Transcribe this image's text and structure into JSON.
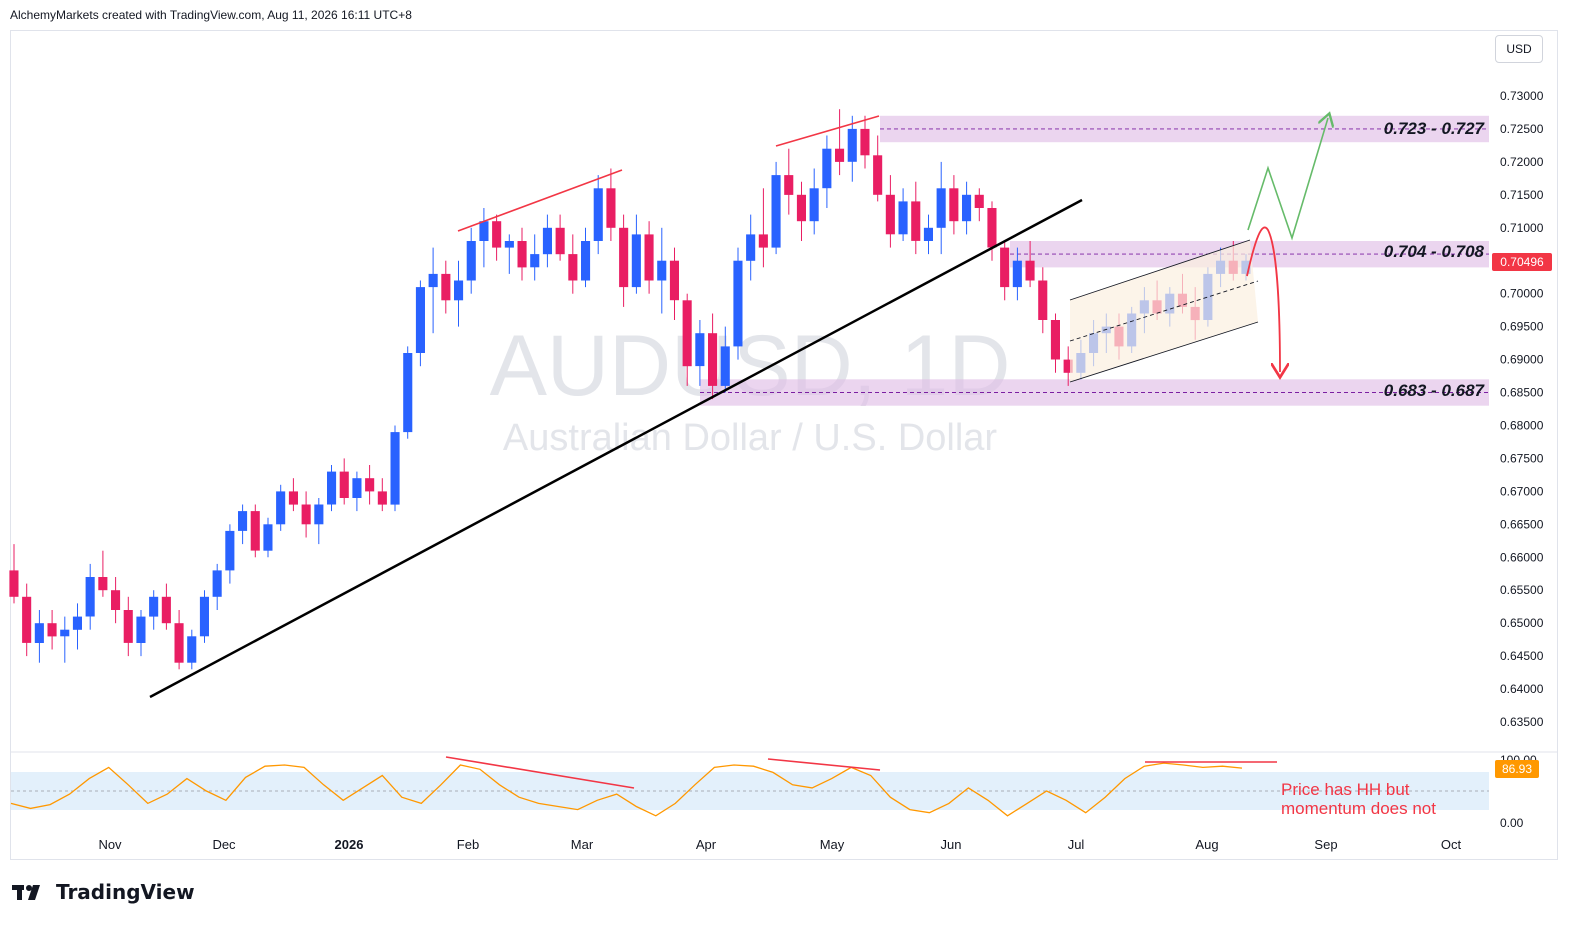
{
  "header": {
    "attribution": "AlchemyMarkets created with TradingView.com, Aug 11, 2026 16:11 UTC+8",
    "currency_button": "USD",
    "brand": "TradingView"
  },
  "watermark": {
    "symbol": "AUDUSD, 1D",
    "description": "Australian Dollar / U.S. Dollar"
  },
  "colors": {
    "bull": "#2962ff",
    "bear": "#e91e63",
    "zone": "#e1bee7",
    "trendline": "#000000",
    "divergence": "#f23645",
    "green_path": "#66bb6a",
    "red_path": "#f23645",
    "oscillator": "#ff9800",
    "price_label": "#f23645"
  },
  "chart_data": [
    {
      "type": "candlestick",
      "title": "AUDUSD, 1D",
      "subtitle": "Australian Dollar / U.S. Dollar",
      "ylim": [
        0.6315,
        0.7365
      ],
      "y_ticks": [
        "0.73000",
        "0.72500",
        "0.72000",
        "0.71500",
        "0.71000",
        "0.70000",
        "0.69500",
        "0.69000",
        "0.68500",
        "0.68000",
        "0.67500",
        "0.67000",
        "0.66500",
        "0.66000",
        "0.65500",
        "0.65000",
        "0.64500",
        "0.64000",
        "0.63500"
      ],
      "x_ticks": [
        "Nov",
        "Dec",
        "2026",
        "Feb",
        "Mar",
        "Apr",
        "May",
        "Jun",
        "Jul",
        "Aug",
        "Sep",
        "Oct"
      ],
      "last_price": "0.70496",
      "candles": [
        [
          0.658,
          0.662,
          0.653,
          0.654
        ],
        [
          0.654,
          0.656,
          0.645,
          0.647
        ],
        [
          0.647,
          0.652,
          0.644,
          0.65
        ],
        [
          0.65,
          0.652,
          0.646,
          0.648
        ],
        [
          0.648,
          0.651,
          0.644,
          0.649
        ],
        [
          0.649,
          0.653,
          0.646,
          0.651
        ],
        [
          0.651,
          0.659,
          0.649,
          0.657
        ],
        [
          0.657,
          0.661,
          0.654,
          0.655
        ],
        [
          0.655,
          0.657,
          0.65,
          0.652
        ],
        [
          0.652,
          0.654,
          0.645,
          0.647
        ],
        [
          0.647,
          0.652,
          0.645,
          0.651
        ],
        [
          0.651,
          0.655,
          0.649,
          0.654
        ],
        [
          0.654,
          0.656,
          0.649,
          0.65
        ],
        [
          0.65,
          0.652,
          0.643,
          0.644
        ],
        [
          0.644,
          0.649,
          0.643,
          0.648
        ],
        [
          0.648,
          0.655,
          0.647,
          0.654
        ],
        [
          0.654,
          0.659,
          0.652,
          0.658
        ],
        [
          0.658,
          0.665,
          0.656,
          0.664
        ],
        [
          0.664,
          0.668,
          0.662,
          0.667
        ],
        [
          0.667,
          0.668,
          0.66,
          0.661
        ],
        [
          0.661,
          0.666,
          0.66,
          0.665
        ],
        [
          0.665,
          0.671,
          0.664,
          0.67
        ],
        [
          0.67,
          0.672,
          0.667,
          0.668
        ],
        [
          0.668,
          0.67,
          0.663,
          0.665
        ],
        [
          0.665,
          0.669,
          0.662,
          0.668
        ],
        [
          0.668,
          0.674,
          0.667,
          0.673
        ],
        [
          0.673,
          0.675,
          0.668,
          0.669
        ],
        [
          0.669,
          0.673,
          0.667,
          0.672
        ],
        [
          0.672,
          0.674,
          0.668,
          0.67
        ],
        [
          0.67,
          0.672,
          0.667,
          0.668
        ],
        [
          0.668,
          0.68,
          0.667,
          0.679
        ],
        [
          0.679,
          0.692,
          0.678,
          0.691
        ],
        [
          0.691,
          0.702,
          0.689,
          0.701
        ],
        [
          0.701,
          0.707,
          0.694,
          0.703
        ],
        [
          0.703,
          0.705,
          0.697,
          0.699
        ],
        [
          0.699,
          0.705,
          0.695,
          0.702
        ],
        [
          0.702,
          0.71,
          0.7,
          0.708
        ],
        [
          0.708,
          0.713,
          0.704,
          0.711
        ],
        [
          0.711,
          0.712,
          0.705,
          0.707
        ],
        [
          0.707,
          0.709,
          0.703,
          0.708
        ],
        [
          0.708,
          0.71,
          0.702,
          0.704
        ],
        [
          0.704,
          0.709,
          0.702,
          0.706
        ],
        [
          0.706,
          0.712,
          0.704,
          0.71
        ],
        [
          0.71,
          0.712,
          0.705,
          0.706
        ],
        [
          0.706,
          0.709,
          0.7,
          0.702
        ],
        [
          0.702,
          0.71,
          0.701,
          0.708
        ],
        [
          0.708,
          0.718,
          0.706,
          0.716
        ],
        [
          0.716,
          0.719,
          0.708,
          0.71
        ],
        [
          0.71,
          0.712,
          0.698,
          0.701
        ],
        [
          0.701,
          0.712,
          0.7,
          0.709
        ],
        [
          0.709,
          0.711,
          0.7,
          0.702
        ],
        [
          0.702,
          0.71,
          0.697,
          0.705
        ],
        [
          0.705,
          0.707,
          0.696,
          0.699
        ],
        [
          0.699,
          0.7,
          0.686,
          0.689
        ],
        [
          0.689,
          0.696,
          0.686,
          0.694
        ],
        [
          0.694,
          0.697,
          0.684,
          0.686
        ],
        [
          0.686,
          0.695,
          0.685,
          0.692
        ],
        [
          0.692,
          0.707,
          0.69,
          0.705
        ],
        [
          0.705,
          0.712,
          0.702,
          0.709
        ],
        [
          0.709,
          0.716,
          0.704,
          0.707
        ],
        [
          0.707,
          0.72,
          0.706,
          0.718
        ],
        [
          0.718,
          0.722,
          0.712,
          0.715
        ],
        [
          0.715,
          0.717,
          0.708,
          0.711
        ],
        [
          0.711,
          0.719,
          0.709,
          0.716
        ],
        [
          0.716,
          0.724,
          0.713,
          0.722
        ],
        [
          0.722,
          0.728,
          0.718,
          0.72
        ],
        [
          0.72,
          0.727,
          0.717,
          0.725
        ],
        [
          0.725,
          0.727,
          0.719,
          0.721
        ],
        [
          0.721,
          0.724,
          0.714,
          0.715
        ],
        [
          0.715,
          0.718,
          0.707,
          0.709
        ],
        [
          0.709,
          0.716,
          0.708,
          0.714
        ],
        [
          0.714,
          0.717,
          0.706,
          0.708
        ],
        [
          0.708,
          0.712,
          0.706,
          0.71
        ],
        [
          0.71,
          0.72,
          0.706,
          0.716
        ],
        [
          0.716,
          0.718,
          0.709,
          0.711
        ],
        [
          0.711,
          0.717,
          0.709,
          0.715
        ],
        [
          0.715,
          0.716,
          0.711,
          0.713
        ],
        [
          0.713,
          0.714,
          0.705,
          0.707
        ],
        [
          0.707,
          0.708,
          0.699,
          0.701
        ],
        [
          0.701,
          0.707,
          0.699,
          0.705
        ],
        [
          0.705,
          0.708,
          0.701,
          0.702
        ],
        [
          0.702,
          0.704,
          0.694,
          0.696
        ],
        [
          0.696,
          0.697,
          0.688,
          0.69
        ],
        [
          0.69,
          0.692,
          0.686,
          0.688
        ],
        [
          0.688,
          0.693,
          0.687,
          0.691
        ],
        [
          0.691,
          0.696,
          0.689,
          0.694
        ],
        [
          0.694,
          0.697,
          0.691,
          0.695
        ],
        [
          0.695,
          0.697,
          0.69,
          0.692
        ],
        [
          0.692,
          0.698,
          0.691,
          0.697
        ],
        [
          0.697,
          0.701,
          0.694,
          0.699
        ],
        [
          0.699,
          0.702,
          0.696,
          0.697
        ],
        [
          0.697,
          0.701,
          0.695,
          0.7
        ],
        [
          0.7,
          0.703,
          0.697,
          0.698
        ],
        [
          0.698,
          0.701,
          0.693,
          0.696
        ],
        [
          0.696,
          0.704,
          0.695,
          0.703
        ],
        [
          0.703,
          0.707,
          0.701,
          0.705
        ],
        [
          0.705,
          0.708,
          0.702,
          0.703
        ],
        [
          0.703,
          0.706,
          0.702,
          0.705
        ]
      ]
    },
    {
      "type": "line",
      "title": "",
      "ylim": [
        0,
        100
      ],
      "y_ticks": [
        "100.00",
        "0.00"
      ],
      "last_value": "86.93",
      "values": [
        30,
        22,
        28,
        45,
        70,
        88,
        60,
        30,
        45,
        70,
        50,
        35,
        72,
        90,
        92,
        88,
        60,
        35,
        55,
        75,
        40,
        30,
        60,
        92,
        85,
        60,
        40,
        30,
        25,
        20,
        35,
        45,
        25,
        10,
        30,
        60,
        88,
        92,
        90,
        80,
        60,
        55,
        70,
        88,
        75,
        40,
        20,
        15,
        30,
        55,
        35,
        10,
        30,
        50,
        35,
        15,
        40,
        70,
        90,
        95,
        92,
        88,
        90,
        86.93
      ]
    }
  ],
  "annotations": {
    "zones": [
      {
        "label": "0.723 - 0.727",
        "low": 0.723,
        "high": 0.727,
        "mid": 0.725
      },
      {
        "label": "0.704 - 0.708",
        "low": 0.704,
        "high": 0.708,
        "mid": 0.706
      },
      {
        "label": "0.683 - 0.687",
        "low": 0.683,
        "high": 0.687,
        "mid": 0.685
      }
    ],
    "note_lines": [
      "Price has HH but",
      "momentum does not"
    ]
  }
}
